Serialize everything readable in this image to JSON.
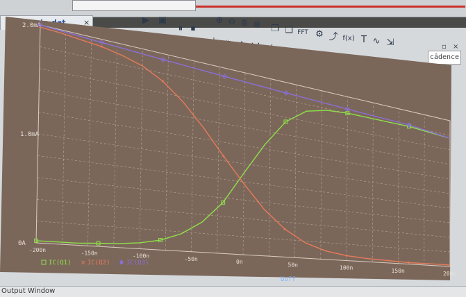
{
  "window": {
    "tab_title": "Uoff-sveip.dat (active)",
    "tab_close": "×",
    "logo_text": "cādence",
    "output_window_label": "Output Window",
    "window_controls": [
      "▫",
      "×"
    ]
  },
  "toolbar": {
    "icons": [
      "run-icon",
      "save-icon",
      "pause-icon",
      "stop-icon",
      "zoom-in-icon",
      "zoom-out-icon",
      "zoom-fit-icon",
      "zoom-area-icon",
      "copy-icon",
      "paste-icon",
      "fft-icon",
      "trace-icon",
      "cursor-icon",
      "function-icon",
      "text-icon",
      "wave-icon",
      "marker-icon"
    ]
  },
  "chart_data": {
    "type": "line",
    "title": "",
    "xlabel": "Uoff",
    "ylabel": "",
    "xlim": [
      -200,
      200
    ],
    "ylim": [
      0,
      2.0
    ],
    "x_ticks": [
      "-200n",
      "-150n",
      "-100n",
      "-50n",
      "0n",
      "50n",
      "100n",
      "150n",
      "200n"
    ],
    "y_ticks": [
      "0A",
      "1.0mA",
      "2.0mA"
    ],
    "x_tick_values": [
      -200,
      -150,
      -100,
      -50,
      0,
      50,
      100,
      150,
      200
    ],
    "y_tick_values": [
      0,
      1.0,
      2.0
    ],
    "grid": true,
    "legend_position": "bottom-left",
    "x": [
      -200,
      -180,
      -160,
      -140,
      -120,
      -100,
      -80,
      -60,
      -40,
      -20,
      0,
      20,
      40,
      60,
      80,
      100,
      120,
      140,
      160,
      180,
      200
    ],
    "series": [
      {
        "name": "IC(Q1)",
        "color": "#8fe04a",
        "marker": "square",
        "values": [
          0.02,
          0.02,
          0.02,
          0.03,
          0.04,
          0.06,
          0.1,
          0.18,
          0.32,
          0.55,
          0.9,
          1.25,
          1.55,
          1.72,
          1.78,
          1.8,
          1.8,
          1.8,
          1.8,
          1.78,
          1.76
        ]
      },
      {
        "name": "IC(Q2)",
        "color": "#e77a5a",
        "marker": "x",
        "values": [
          1.98,
          1.97,
          1.95,
          1.93,
          1.89,
          1.83,
          1.72,
          1.55,
          1.32,
          1.05,
          0.78,
          0.52,
          0.32,
          0.18,
          0.1,
          0.06,
          0.04,
          0.03,
          0.02,
          0.02,
          0.02
        ]
      },
      {
        "name": "IC(Q3)",
        "color": "#8a6fd8",
        "marker": "diamond",
        "values": [
          2.0,
          1.99,
          1.98,
          1.97,
          1.96,
          1.95,
          1.94,
          1.93,
          1.92,
          1.91,
          1.9,
          1.89,
          1.88,
          1.87,
          1.86,
          1.85,
          1.84,
          1.83,
          1.82,
          1.79,
          1.76
        ]
      }
    ]
  }
}
